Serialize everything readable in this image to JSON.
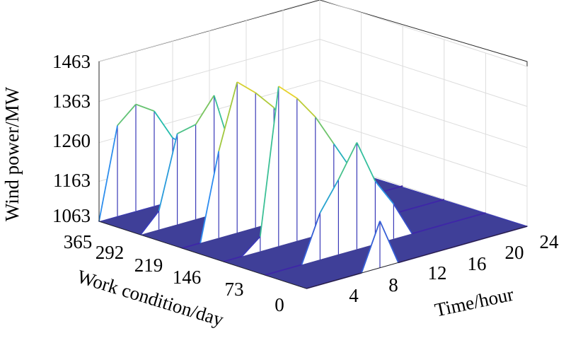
{
  "chart_data": {
    "type": "surface3d",
    "title": "",
    "xlabel": "Time/hour",
    "ylabel": "Work condition/day",
    "zlabel": "Wind power/MW",
    "x_ticks": [
      "4",
      "8",
      "12",
      "16",
      "20",
      "24"
    ],
    "y_ticks": [
      "0",
      "73",
      "146",
      "219",
      "292",
      "365"
    ],
    "z_ticks": [
      "1063",
      "1163",
      "1260",
      "1363",
      "1463"
    ],
    "xlim": [
      0,
      24
    ],
    "ylim": [
      0,
      365
    ],
    "zlim": [
      1063,
      1463
    ],
    "grid": true,
    "colormap": "parula",
    "floor_color": "#3f3f98",
    "edge_color": "#3a3ab8",
    "peaks_description": "Sparse vertical spikes above a flat floor at 1063 MW; highest peaks near 1463 MW",
    "sample_profiles": [
      {
        "day": 365,
        "hours": [
          0,
          2,
          4,
          6,
          8,
          10,
          12,
          14,
          16,
          18,
          20,
          22,
          24
        ],
        "power": [
          1063,
          1290,
          1330,
          1300,
          1220,
          1180,
          1063,
          1063,
          1063,
          1063,
          1063,
          1063,
          1063
        ]
      },
      {
        "day": 292,
        "hours": [
          0,
          2,
          4,
          6,
          8,
          10,
          12,
          14,
          16,
          18,
          20,
          22,
          24
        ],
        "power": [
          1063,
          1110,
          1290,
          1300,
          1360,
          1200,
          1150,
          1063,
          1063,
          1063,
          1063,
          1063,
          1063
        ]
      },
      {
        "day": 219,
        "hours": [
          0,
          2,
          4,
          6,
          8,
          10,
          12,
          14,
          16,
          18,
          20,
          22,
          24
        ],
        "power": [
          1063,
          1063,
          1280,
          1440,
          1400,
          1350,
          1260,
          1180,
          1063,
          1063,
          1063,
          1063,
          1063
        ]
      },
      {
        "day": 146,
        "hours": [
          0,
          2,
          4,
          6,
          8,
          10,
          12,
          14,
          16,
          18,
          20,
          22,
          24
        ],
        "power": [
          1063,
          1063,
          1100,
          1463,
          1420,
          1360,
          1280,
          1200,
          1150,
          1063,
          1063,
          1063,
          1063
        ]
      },
      {
        "day": 73,
        "hours": [
          0,
          2,
          4,
          6,
          8,
          10,
          12,
          14,
          16,
          18,
          20,
          22,
          24
        ],
        "power": [
          1063,
          1063,
          1063,
          1180,
          1250,
          1330,
          1220,
          1150,
          1063,
          1063,
          1063,
          1063,
          1063
        ]
      },
      {
        "day": 0,
        "hours": [
          0,
          2,
          4,
          6,
          8,
          10,
          12,
          14,
          16,
          18,
          20,
          22,
          24
        ],
        "power": [
          1063,
          1063,
          1063,
          1063,
          1180,
          1063,
          1063,
          1063,
          1063,
          1063,
          1063,
          1063,
          1063
        ]
      }
    ]
  }
}
